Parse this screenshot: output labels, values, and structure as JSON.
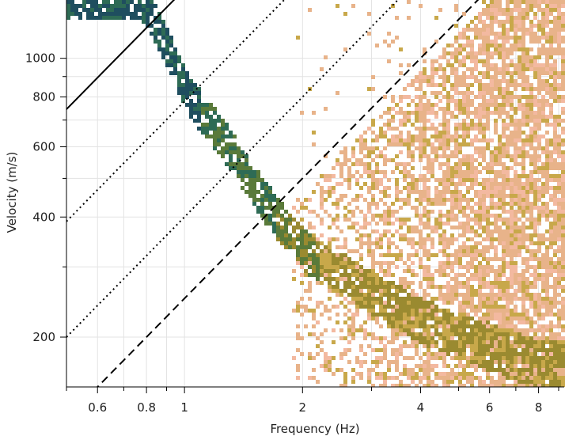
{
  "chart_data": {
    "type": "heatmap",
    "title": "",
    "xlabel": "Frequency (Hz)",
    "ylabel": "Velocity (m/s)",
    "xscale": "log",
    "yscale": "log",
    "xlim": [
      0.5,
      9.3
    ],
    "ylim": [
      150,
      1400
    ],
    "grid": true,
    "x_ticks": [
      {
        "value": 0.6,
        "label": "0.6"
      },
      {
        "value": 0.8,
        "label": "0.8"
      },
      {
        "value": 1,
        "label": "1"
      },
      {
        "value": 2,
        "label": "2"
      },
      {
        "value": 4,
        "label": "4"
      },
      {
        "value": 6,
        "label": "6"
      },
      {
        "value": 8,
        "label": "8"
      }
    ],
    "y_ticks": [
      {
        "value": 200,
        "label": "200"
      },
      {
        "value": 400,
        "label": "400"
      },
      {
        "value": 600,
        "label": "600"
      },
      {
        "value": 800,
        "label": "800"
      },
      {
        "value": 1000,
        "label": "1000"
      }
    ],
    "colormap": [
      "#1f4e5f",
      "#2e6b55",
      "#5a7a3a",
      "#9a8a30",
      "#c8a84a",
      "#e8b38a",
      "#f3b9a0"
    ],
    "dispersion_curve": [
      {
        "f": 0.78,
        "v": 1400
      },
      {
        "f": 0.85,
        "v": 1200
      },
      {
        "f": 0.93,
        "v": 1000
      },
      {
        "f": 1.03,
        "v": 800
      },
      {
        "f": 1.25,
        "v": 630
      },
      {
        "f": 1.5,
        "v": 480
      },
      {
        "f": 1.75,
        "v": 390
      },
      {
        "f": 2.1,
        "v": 320
      },
      {
        "f": 2.8,
        "v": 270
      },
      {
        "f": 4,
        "v": 220
      },
      {
        "f": 5.5,
        "v": 195
      },
      {
        "f": 8,
        "v": 170
      }
    ],
    "resolution_lines": [
      {
        "style": "solid",
        "wavelength_m": 1490
      },
      {
        "style": "dotted",
        "wavelength_m": 780
      },
      {
        "style": "dotted",
        "wavelength_m": 400
      },
      {
        "style": "dashed",
        "wavelength_m": 250
      }
    ]
  }
}
